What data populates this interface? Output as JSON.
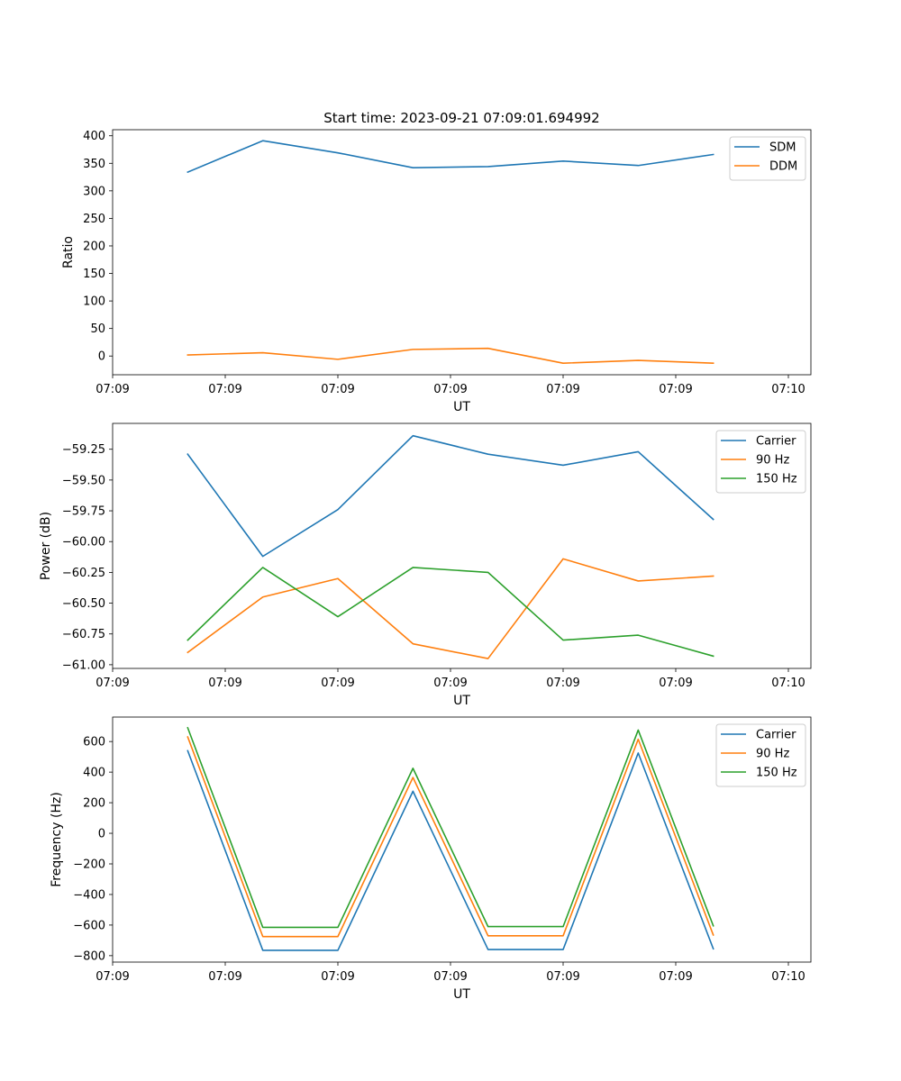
{
  "title": "Start time: 2023-09-21 07:09:01.694992",
  "colors": {
    "c1": "#1f77b4",
    "c2": "#ff7f0e",
    "c3": "#2ca02c"
  },
  "chart_data": [
    {
      "type": "line",
      "xlabel": "UT",
      "ylabel": "Ratio",
      "xlim": [
        0,
        9.3
      ],
      "ylim": [
        -34,
        411
      ],
      "x": [
        1,
        2,
        3,
        4,
        5,
        6,
        7,
        8
      ],
      "xticks": [
        {
          "v": 0,
          "label": "07:09"
        },
        {
          "v": 1.5,
          "label": "07:09"
        },
        {
          "v": 3,
          "label": "07:09"
        },
        {
          "v": 4.5,
          "label": "07:09"
        },
        {
          "v": 6,
          "label": "07:09"
        },
        {
          "v": 7.5,
          "label": "07:09"
        },
        {
          "v": 9,
          "label": "07:10"
        }
      ],
      "yticks": [
        {
          "v": 400,
          "label": "400"
        },
        {
          "v": 350,
          "label": "350"
        },
        {
          "v": 300,
          "label": "300"
        },
        {
          "v": 250,
          "label": "250"
        },
        {
          "v": 200,
          "label": "200"
        },
        {
          "v": 150,
          "label": "150"
        },
        {
          "v": 100,
          "label": "100"
        },
        {
          "v": 50,
          "label": "50"
        },
        {
          "v": 0,
          "label": "0"
        }
      ],
      "series": [
        {
          "name": "SDM",
          "color": "#1f77b4",
          "values": [
            334,
            391,
            369,
            342,
            344,
            354,
            346,
            366
          ]
        },
        {
          "name": "DDM",
          "color": "#ff7f0e",
          "values": [
            2,
            6,
            -6,
            12,
            14,
            -13,
            -8,
            -13
          ]
        }
      ]
    },
    {
      "type": "line",
      "xlabel": "UT",
      "ylabel": "Power (dB)",
      "xlim": [
        0,
        9.3
      ],
      "ylim": [
        -61.03,
        -59.04
      ],
      "x": [
        1,
        2,
        3,
        4,
        5,
        6,
        7,
        8
      ],
      "xticks": [
        {
          "v": 0,
          "label": "07:09"
        },
        {
          "v": 1.5,
          "label": "07:09"
        },
        {
          "v": 3,
          "label": "07:09"
        },
        {
          "v": 4.5,
          "label": "07:09"
        },
        {
          "v": 6,
          "label": "07:09"
        },
        {
          "v": 7.5,
          "label": "07:09"
        },
        {
          "v": 9,
          "label": "07:10"
        }
      ],
      "yticks": [
        {
          "v": -59.25,
          "label": "−59.25"
        },
        {
          "v": -59.5,
          "label": "−59.50"
        },
        {
          "v": -59.75,
          "label": "−59.75"
        },
        {
          "v": -60.0,
          "label": "−60.00"
        },
        {
          "v": -60.25,
          "label": "−60.25"
        },
        {
          "v": -60.5,
          "label": "−60.50"
        },
        {
          "v": -60.75,
          "label": "−60.75"
        },
        {
          "v": -61.0,
          "label": "−61.00"
        }
      ],
      "series": [
        {
          "name": "Carrier",
          "color": "#1f77b4",
          "values": [
            -59.29,
            -60.12,
            -59.74,
            -59.14,
            -59.29,
            -59.38,
            -59.27,
            -59.82
          ]
        },
        {
          "name": "90 Hz",
          "color": "#ff7f0e",
          "values": [
            -60.9,
            -60.45,
            -60.3,
            -60.83,
            -60.95,
            -60.14,
            -60.32,
            -60.28
          ]
        },
        {
          "name": "150 Hz",
          "color": "#2ca02c",
          "values": [
            -60.8,
            -60.21,
            -60.61,
            -60.21,
            -60.25,
            -60.8,
            -60.76,
            -60.93
          ]
        }
      ]
    },
    {
      "type": "line",
      "xlabel": "UT",
      "ylabel": "Frequency (Hz)",
      "xlim": [
        0,
        9.3
      ],
      "ylim": [
        -842,
        760
      ],
      "x": [
        1,
        2,
        3,
        4,
        5,
        6,
        7,
        8
      ],
      "xticks": [
        {
          "v": 0,
          "label": "07:09"
        },
        {
          "v": 1.5,
          "label": "07:09"
        },
        {
          "v": 3,
          "label": "07:09"
        },
        {
          "v": 4.5,
          "label": "07:09"
        },
        {
          "v": 6,
          "label": "07:09"
        },
        {
          "v": 7.5,
          "label": "07:09"
        },
        {
          "v": 9,
          "label": "07:10"
        }
      ],
      "yticks": [
        {
          "v": 600,
          "label": "600"
        },
        {
          "v": 400,
          "label": "400"
        },
        {
          "v": 200,
          "label": "200"
        },
        {
          "v": 0,
          "label": "0"
        },
        {
          "v": -200,
          "label": "−200"
        },
        {
          "v": -400,
          "label": "−400"
        },
        {
          "v": -600,
          "label": "−600"
        },
        {
          "v": -800,
          "label": "−800"
        }
      ],
      "series": [
        {
          "name": "Carrier",
          "color": "#1f77b4",
          "values": [
            540,
            -765,
            -765,
            275,
            -760,
            -760,
            525,
            -755
          ]
        },
        {
          "name": "90 Hz",
          "color": "#ff7f0e",
          "values": [
            630,
            -675,
            -675,
            365,
            -670,
            -670,
            615,
            -665
          ]
        },
        {
          "name": "150 Hz",
          "color": "#2ca02c",
          "values": [
            690,
            -615,
            -615,
            425,
            -610,
            -610,
            675,
            -605
          ]
        }
      ]
    }
  ]
}
